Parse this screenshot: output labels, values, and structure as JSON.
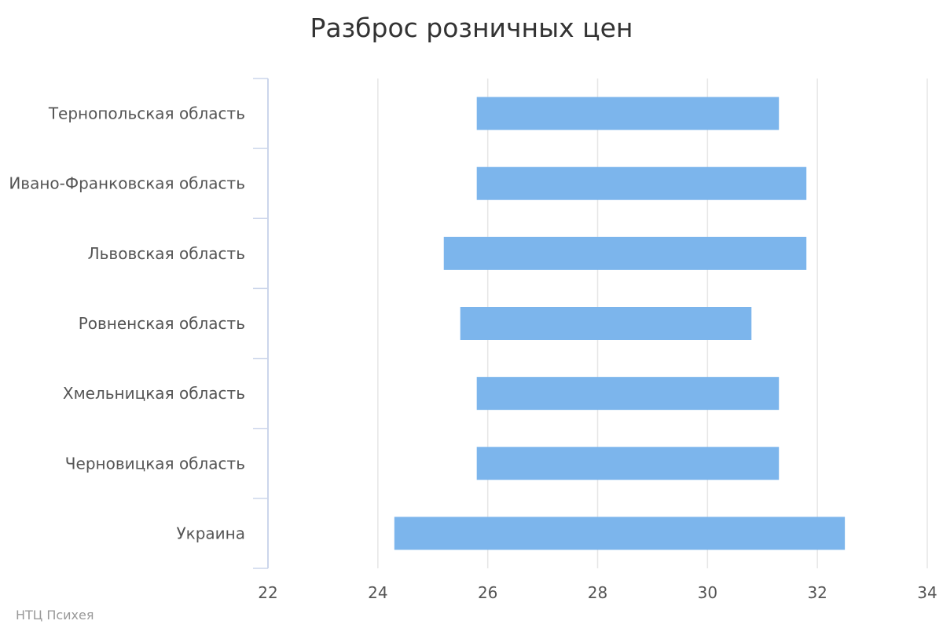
{
  "credit": "НТЦ Психея",
  "colors": {
    "bar": "#7cb5ec",
    "grid": "#e6e6e6",
    "axis": "#ccd6eb",
    "text": "#555555",
    "title": "#333333"
  },
  "chart_data": {
    "type": "bar",
    "orientation": "horizontal",
    "title": "Разброс розничных цен",
    "xlabel": "",
    "ylabel": "",
    "categories": [
      "Тернопольская область",
      "Ивано-Франковская область",
      "Львовская область",
      "Ровненская область",
      "Хмельницкая область",
      "Черновицкая область",
      "Украина"
    ],
    "ranges": [
      [
        25.8,
        31.3
      ],
      [
        25.8,
        31.8
      ],
      [
        25.2,
        31.8
      ],
      [
        25.5,
        30.8
      ],
      [
        25.8,
        31.3
      ],
      [
        25.8,
        31.3
      ],
      [
        24.3,
        32.5
      ]
    ],
    "xlim": [
      22,
      34
    ],
    "ticks": [
      22,
      24,
      26,
      28,
      30,
      32,
      34
    ],
    "grid": true,
    "legend": "none"
  }
}
